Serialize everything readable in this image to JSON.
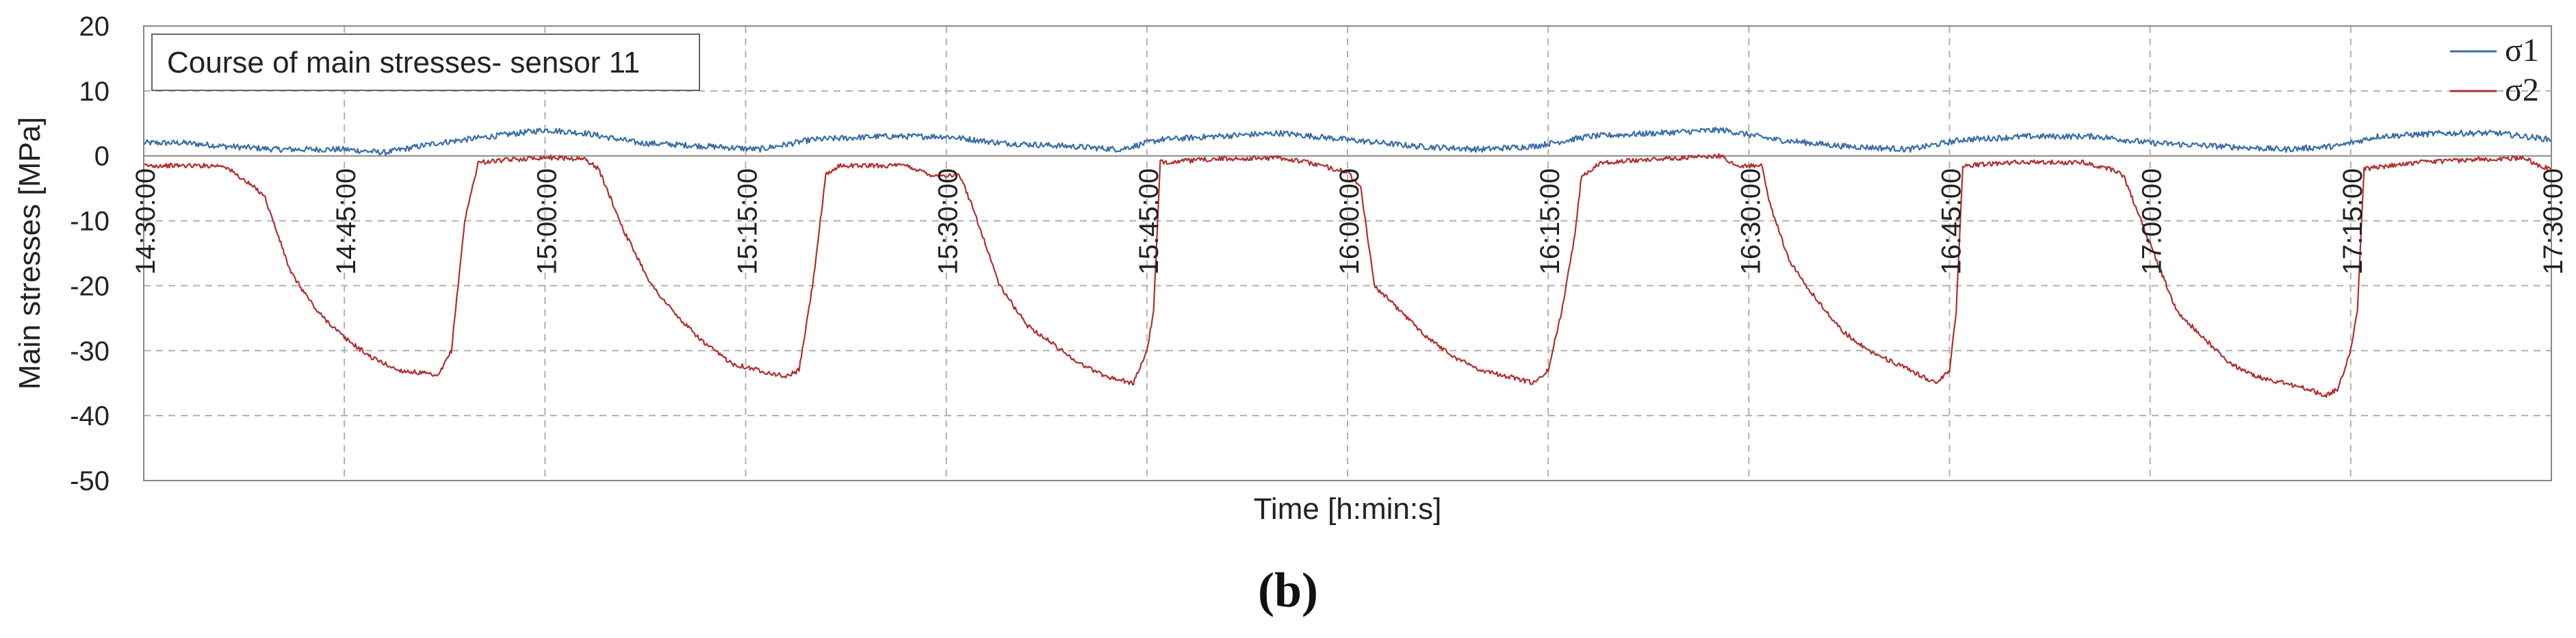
{
  "chart_data": {
    "type": "line",
    "title": "Course of main stresses- sensor 11",
    "xlabel": "Time [h:min:s]",
    "ylabel": "Main stresses [MPa]",
    "panel_label": "(b)",
    "ylim": [
      -50,
      20
    ],
    "yticks": [
      20,
      10,
      0,
      -10,
      -20,
      -30,
      -40,
      -50
    ],
    "xlim_minutes": [
      870,
      1050
    ],
    "xticks": [
      "14:30:00",
      "14:45:00",
      "15:00:00",
      "15:15:00",
      "15:30:00",
      "15:45:00",
      "16:00:00",
      "16:15:00",
      "16:30:00",
      "16:45:00",
      "17:00:00",
      "17:15:00",
      "17:30:00"
    ],
    "grid": true,
    "legend_position": "top-right",
    "series": [
      {
        "name": "σ1",
        "color": "#3a6ea8",
        "points": [
          [
            "14:30:00",
            2
          ],
          [
            "14:33:00",
            2
          ],
          [
            "14:36:00",
            1.5
          ],
          [
            "14:40:00",
            1
          ],
          [
            "14:45:00",
            1
          ],
          [
            "14:48:00",
            0.5
          ],
          [
            "14:52:00",
            2
          ],
          [
            "14:56:00",
            3
          ],
          [
            "15:00:00",
            4
          ],
          [
            "15:03:00",
            3.5
          ],
          [
            "15:07:00",
            2
          ],
          [
            "15:12:00",
            1.5
          ],
          [
            "15:16:00",
            1
          ],
          [
            "15:20:00",
            2.5
          ],
          [
            "15:25:00",
            3
          ],
          [
            "15:30:00",
            3
          ],
          [
            "15:34:00",
            2
          ],
          [
            "15:39:00",
            1.5
          ],
          [
            "15:43:00",
            1
          ],
          [
            "15:46:00",
            2.5
          ],
          [
            "15:50:00",
            3
          ],
          [
            "15:55:00",
            3.5
          ],
          [
            "16:00:00",
            2.5
          ],
          [
            "16:05:00",
            1.5
          ],
          [
            "16:10:00",
            1
          ],
          [
            "16:14:00",
            1.5
          ],
          [
            "16:18:00",
            3
          ],
          [
            "16:23:00",
            3.5
          ],
          [
            "16:28:00",
            4
          ],
          [
            "16:32:00",
            2.5
          ],
          [
            "16:37:00",
            1.5
          ],
          [
            "16:42:00",
            1
          ],
          [
            "16:46:00",
            2.5
          ],
          [
            "16:51:00",
            3
          ],
          [
            "16:56:00",
            3
          ],
          [
            "17:00:00",
            2
          ],
          [
            "17:05:00",
            1.5
          ],
          [
            "17:10:00",
            1
          ],
          [
            "17:14:00",
            1.5
          ],
          [
            "17:17:00",
            3
          ],
          [
            "17:22:00",
            3.5
          ],
          [
            "17:26:00",
            3.5
          ],
          [
            "17:30:00",
            2.5
          ]
        ]
      },
      {
        "name": "σ2",
        "color": "#b03030",
        "points": [
          [
            "14:30:00",
            -1.5
          ],
          [
            "14:36:00",
            -1.5
          ],
          [
            "14:39:00",
            -6
          ],
          [
            "14:40:00",
            -12
          ],
          [
            "14:41:00",
            -18
          ],
          [
            "14:43:00",
            -24
          ],
          [
            "14:45:00",
            -28
          ],
          [
            "14:47:00",
            -31
          ],
          [
            "14:49:00",
            -33
          ],
          [
            "14:51:00",
            -33.5
          ],
          [
            "14:52:00",
            -34
          ],
          [
            "14:53:00",
            -30
          ],
          [
            "14:54:00",
            -10
          ],
          [
            "14:55:00",
            -1
          ],
          [
            "14:58:00",
            -0.5
          ],
          [
            "15:00:00",
            -0.2
          ],
          [
            "15:03:00",
            -0.5
          ],
          [
            "15:04:00",
            -2
          ],
          [
            "15:06:00",
            -12
          ],
          [
            "15:08:00",
            -20
          ],
          [
            "15:10:00",
            -25
          ],
          [
            "15:12:00",
            -29
          ],
          [
            "15:14:00",
            -32
          ],
          [
            "15:16:00",
            -33
          ],
          [
            "15:18:00",
            -34
          ],
          [
            "15:19:00",
            -33
          ],
          [
            "15:20:00",
            -20
          ],
          [
            "15:21:00",
            -3
          ],
          [
            "15:22:00",
            -1.5
          ],
          [
            "15:27:00",
            -1.5
          ],
          [
            "15:29:00",
            -3
          ],
          [
            "15:31:00",
            -3
          ],
          [
            "15:32:00",
            -8
          ],
          [
            "15:34:00",
            -20
          ],
          [
            "15:36:00",
            -26
          ],
          [
            "15:38:00",
            -29
          ],
          [
            "15:40:00",
            -32
          ],
          [
            "15:42:00",
            -34
          ],
          [
            "15:44:00",
            -35
          ],
          [
            "15:45:00",
            -30
          ],
          [
            "15:45:30",
            -24
          ],
          [
            "15:46:00",
            -1
          ],
          [
            "15:50:00",
            -0.5
          ],
          [
            "15:55:00",
            -0.3
          ],
          [
            "15:57:00",
            -1
          ],
          [
            "15:59:00",
            -2
          ],
          [
            "16:00:00",
            -2.5
          ],
          [
            "16:01:00",
            -5
          ],
          [
            "16:02:00",
            -20
          ],
          [
            "16:04:00",
            -24
          ],
          [
            "16:06:00",
            -28
          ],
          [
            "16:08:00",
            -31
          ],
          [
            "16:10:00",
            -33
          ],
          [
            "16:12:00",
            -34
          ],
          [
            "16:14:00",
            -35
          ],
          [
            "16:15:00",
            -33
          ],
          [
            "16:16:00",
            -24
          ],
          [
            "16:17:00",
            -12
          ],
          [
            "16:17:30",
            -3
          ],
          [
            "16:19:00",
            -1
          ],
          [
            "16:23:00",
            -0.5
          ],
          [
            "16:28:00",
            0
          ],
          [
            "16:29:00",
            -1.5
          ],
          [
            "16:31:00",
            -1.5
          ],
          [
            "16:31:30",
            -7
          ],
          [
            "16:33:00",
            -16
          ],
          [
            "16:35:00",
            -22
          ],
          [
            "16:37:00",
            -27
          ],
          [
            "16:39:00",
            -30
          ],
          [
            "16:41:00",
            -32
          ],
          [
            "16:43:00",
            -34
          ],
          [
            "16:44:00",
            -35
          ],
          [
            "16:45:00",
            -33
          ],
          [
            "16:45:30",
            -24
          ],
          [
            "16:46:00",
            -1.5
          ],
          [
            "16:50:00",
            -1
          ],
          [
            "16:55:00",
            -1
          ],
          [
            "16:57:00",
            -2
          ],
          [
            "16:58:00",
            -3
          ],
          [
            "17:02:00",
            -24
          ],
          [
            "17:04:00",
            -28
          ],
          [
            "17:06:00",
            -32
          ],
          [
            "17:08:00",
            -34
          ],
          [
            "17:10:00",
            -35
          ],
          [
            "17:12:00",
            -36
          ],
          [
            "17:13:00",
            -37
          ],
          [
            "17:14:00",
            -36
          ],
          [
            "17:15:00",
            -30
          ],
          [
            "17:15:30",
            -24
          ],
          [
            "17:16:00",
            -2
          ],
          [
            "17:20:00",
            -1
          ],
          [
            "17:25:00",
            -0.5
          ],
          [
            "17:28:00",
            -0.3
          ],
          [
            "17:29:00",
            -1.5
          ],
          [
            "17:30:00",
            -2
          ]
        ]
      }
    ]
  }
}
